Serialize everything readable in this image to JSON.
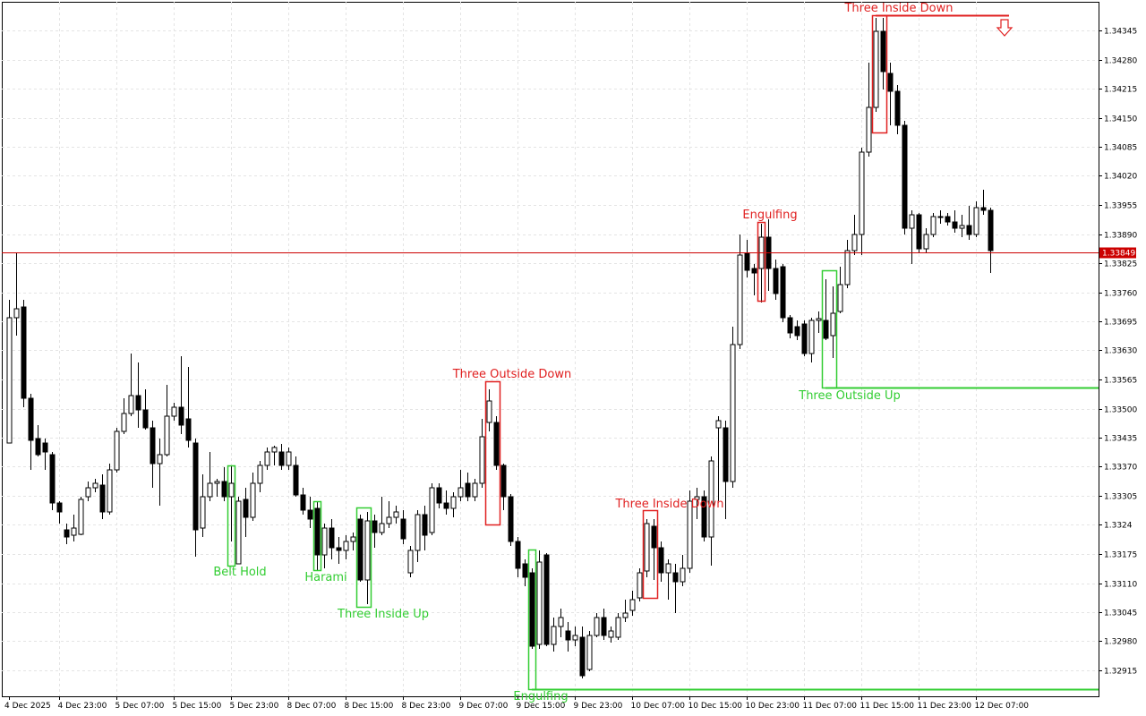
{
  "chart_data": {
    "type": "candlestick",
    "categories": [
      "4 Dec 2025",
      null,
      null,
      null,
      null,
      null,
      null,
      "4 Dec 23:00",
      null,
      null,
      null,
      null,
      null,
      null,
      null,
      "5 Dec 07:00",
      null,
      null,
      null,
      null,
      null,
      null,
      null,
      "5 Dec 15:00",
      null,
      null,
      null,
      null,
      null,
      null,
      null,
      "5 Dec 23:00",
      null,
      null,
      null,
      null,
      null,
      null,
      null,
      "8 Dec 07:00",
      null,
      null,
      null,
      null,
      null,
      null,
      null,
      "8 Dec 15:00",
      null,
      null,
      null,
      null,
      null,
      null,
      null,
      "8 Dec 23:00",
      null,
      null,
      null,
      null,
      null,
      null,
      null,
      "9 Dec 07:00",
      null,
      null,
      null,
      null,
      null,
      null,
      null,
      "9 Dec 15:00",
      null,
      null,
      null,
      null,
      null,
      null,
      null,
      "9 Dec 23:00",
      null,
      null,
      null,
      null,
      null,
      null,
      null,
      "10 Dec 07:00",
      null,
      null,
      null,
      null,
      null,
      null,
      null,
      "10 Dec 15:00",
      null,
      null,
      null,
      null,
      null,
      null,
      null,
      "10 Dec 23:00",
      null,
      null,
      null,
      null,
      null,
      null,
      null,
      "11 Dec 07:00",
      null,
      null,
      null,
      null,
      null,
      null,
      null,
      "11 Dec 15:00",
      null,
      null,
      null,
      null,
      null,
      null,
      null,
      "11 Dec 23:00",
      null,
      null,
      null,
      null,
      null,
      null,
      null,
      "12 Dec 07:00",
      null,
      null
    ],
    "open": [
      1.33423,
      1.33703,
      1.33727,
      1.33523,
      1.33433,
      1.33423,
      1.33397,
      1.33289,
      1.33229,
      1.33217,
      1.33219,
      1.33303,
      1.33323,
      1.33329,
      1.33269,
      1.33363,
      1.33449,
      1.33489,
      1.33529,
      1.33497,
      1.33457,
      1.33377,
      1.33397,
      1.33483,
      1.33503,
      1.33477,
      1.33423,
      1.33233,
      1.33303,
      1.33333,
      1.33337,
      1.33303,
      1.33153,
      1.33297,
      1.33257,
      1.33333,
      1.33373,
      1.33403,
      1.33403,
      1.33373,
      1.33373,
      1.33307,
      1.33273,
      1.33277,
      1.33173,
      1.33233,
      1.33189,
      1.33183,
      1.33203,
      1.33253,
      1.33117,
      1.33249,
      1.33223,
      1.33243,
      1.33257,
      1.33253,
      1.33133,
      1.33183,
      1.33263,
      1.33223,
      1.33323,
      1.33289,
      1.33277,
      1.33303,
      1.33333,
      1.33303,
      1.33333,
      1.33469,
      1.33469,
      1.33373,
      1.33303,
      1.33203,
      1.33153,
      1.33133,
      1.32973,
      1.33173,
      1.32973,
      1.33013,
      1.33003,
      1.32983,
      1.32989,
      1.32917,
      1.32993,
      1.33033,
      1.32989,
      1.32989,
      1.33033,
      1.33049,
      1.33077,
      1.33137,
      1.33237,
      1.33189,
      1.33133,
      1.33133,
      1.33113,
      1.33143,
      1.33297,
      1.33303,
      1.33213,
      1.33457,
      1.33457,
      1.33337,
      1.33643,
      1.33847,
      1.33813,
      1.33813,
      1.33883,
      1.33813,
      1.33817,
      1.33703,
      1.33683,
      1.33689,
      1.33623,
      1.33697,
      1.33697,
      1.33663,
      1.33717,
      1.33777,
      1.33853,
      1.33889,
      1.34073,
      1.34173,
      1.34343,
      1.34249,
      1.34209,
      1.34133,
      1.33903,
      1.33933,
      1.33857,
      1.33889,
      1.33929,
      1.33929,
      1.33917,
      1.33903,
      1.33909,
      1.33889,
      1.33949,
      1.33943
    ],
    "high": [
      1.33743,
      1.33849,
      1.33743,
      1.33533,
      1.33463,
      1.33433,
      1.33403,
      1.33293,
      1.33243,
      1.33263,
      1.33303,
      1.33337,
      1.33343,
      1.33353,
      1.33377,
      1.33457,
      1.33523,
      1.33623,
      1.33603,
      1.33543,
      1.33473,
      1.33433,
      1.33553,
      1.33513,
      1.33617,
      1.33593,
      1.33433,
      1.33353,
      1.33403,
      1.33343,
      1.33369,
      1.33373,
      1.33303,
      1.33323,
      1.33357,
      1.33383,
      1.33413,
      1.33417,
      1.33421,
      1.33413,
      1.33393,
      1.33323,
      1.33303,
      1.33293,
      1.33243,
      1.33253,
      1.33213,
      1.33217,
      1.33223,
      1.33263,
      1.33269,
      1.33263,
      1.33303,
      1.33293,
      1.33283,
      1.33273,
      1.33193,
      1.33273,
      1.33283,
      1.33333,
      1.33333,
      1.33317,
      1.33313,
      1.33363,
      1.33357,
      1.33343,
      1.33477,
      1.33543,
      1.33483,
      1.33377,
      1.33309,
      1.33213,
      1.33163,
      1.33143,
      1.33183,
      1.33177,
      1.33033,
      1.33053,
      1.33023,
      1.33013,
      1.33013,
      1.33003,
      1.33043,
      1.33053,
      1.33013,
      1.33043,
      1.33073,
      1.33093,
      1.33143,
      1.33253,
      1.33253,
      1.33203,
      1.33163,
      1.33153,
      1.33173,
      1.33317,
      1.33323,
      1.33317,
      1.33393,
      1.33483,
      1.33473,
      1.33683,
      1.33889,
      1.33877,
      1.33823,
      1.33913,
      1.33923,
      1.33833,
      1.33823,
      1.33709,
      1.33697,
      1.33697,
      1.33703,
      1.33717,
      1.33789,
      1.33773,
      1.33817,
      1.33877,
      1.33933,
      1.34083,
      1.34273,
      1.34373,
      1.34373,
      1.34273,
      1.34223,
      1.34143,
      1.33943,
      1.33937,
      1.33903,
      1.33937,
      1.33943,
      1.33937,
      1.33943,
      1.33933,
      1.33953,
      1.33963,
      1.33989,
      1.33949
    ],
    "low": [
      1.33423,
      1.33663,
      1.33503,
      1.33363,
      1.33393,
      1.33363,
      1.33273,
      1.33243,
      1.33197,
      1.33203,
      1.33217,
      1.33293,
      1.33313,
      1.33253,
      1.33263,
      1.33357,
      1.33443,
      1.33483,
      1.33457,
      1.33453,
      1.33323,
      1.33283,
      1.33393,
      1.33473,
      1.33443,
      1.33413,
      1.33169,
      1.33213,
      1.33293,
      1.33303,
      1.33293,
      1.33203,
      1.33153,
      1.33213,
      1.33249,
      1.33313,
      1.33363,
      1.33373,
      1.33363,
      1.33363,
      1.33303,
      1.33263,
      1.33233,
      1.33139,
      1.33143,
      1.33163,
      1.33153,
      1.33163,
      1.33183,
      1.33113,
      1.33063,
      1.33189,
      1.33217,
      1.33233,
      1.33243,
      1.33197,
      1.33123,
      1.33157,
      1.33183,
      1.33217,
      1.33277,
      1.33263,
      1.33257,
      1.33293,
      1.33293,
      1.33293,
      1.33323,
      1.33449,
      1.33363,
      1.33273,
      1.33193,
      1.33123,
      1.33103,
      1.32963,
      1.32963,
      1.32969,
      1.32957,
      1.32989,
      1.32957,
      1.32969,
      1.32897,
      1.32913,
      1.32989,
      1.32983,
      1.32977,
      1.32983,
      1.33023,
      1.33037,
      1.33069,
      1.33123,
      1.33117,
      1.33113,
      1.33073,
      1.33043,
      1.33103,
      1.33133,
      1.33253,
      1.33203,
      1.33149,
      1.33293,
      1.33253,
      1.33323,
      1.33633,
      1.33793,
      1.33753,
      1.33737,
      1.33763,
      1.33743,
      1.33693,
      1.33657,
      1.33653,
      1.33617,
      1.33603,
      1.33669,
      1.33653,
      1.33613,
      1.33713,
      1.33769,
      1.33843,
      1.33843,
      1.34063,
      1.34163,
      1.34213,
      1.34133,
      1.34113,
      1.33889,
      1.33823,
      1.33849,
      1.33849,
      1.33883,
      1.33913,
      1.33909,
      1.33893,
      1.33883,
      1.33877,
      1.33883,
      1.33933,
      1.33803
    ],
    "close": [
      1.33703,
      1.33723,
      1.33523,
      1.33429,
      1.33397,
      1.33403,
      1.33289,
      1.33269,
      1.33213,
      1.33233,
      1.33297,
      1.33323,
      1.33333,
      1.33269,
      1.33363,
      1.33449,
      1.33489,
      1.33529,
      1.33497,
      1.33457,
      1.33377,
      1.33397,
      1.33483,
      1.33503,
      1.33463,
      1.33429,
      1.33229,
      1.33303,
      1.33333,
      1.33337,
      1.33303,
      1.33333,
      1.33293,
      1.33257,
      1.33333,
      1.33373,
      1.33403,
      1.33413,
      1.33373,
      1.33403,
      1.33307,
      1.33273,
      1.33253,
      1.33173,
      1.33233,
      1.33189,
      1.33183,
      1.33203,
      1.33213,
      1.33117,
      1.33249,
      1.33223,
      1.33243,
      1.33257,
      1.33269,
      1.33209,
      1.33183,
      1.33263,
      1.33217,
      1.33323,
      1.33289,
      1.33277,
      1.33303,
      1.33323,
      1.33303,
      1.33333,
      1.33437,
      1.33517,
      1.33373,
      1.33303,
      1.33203,
      1.33143,
      1.33123,
      1.32969,
      1.33157,
      1.32973,
      1.33013,
      1.33033,
      1.32983,
      1.32993,
      1.32903,
      1.32993,
      1.33033,
      1.32993,
      1.33003,
      1.33033,
      1.33043,
      1.33073,
      1.33133,
      1.33243,
      1.33189,
      1.33133,
      1.33153,
      1.33113,
      1.33143,
      1.33293,
      1.33303,
      1.33213,
      1.33383,
      1.33473,
      1.33337,
      1.33643,
      1.33843,
      1.33809,
      1.33803,
      1.33883,
      1.33813,
      1.33757,
      1.33703,
      1.33669,
      1.33663,
      1.33623,
      1.33697,
      1.33701,
      1.33657,
      1.33713,
      1.33777,
      1.33853,
      1.33889,
      1.34073,
      1.34173,
      1.34343,
      1.34253,
      1.34209,
      1.34133,
      1.33903,
      1.33933,
      1.33857,
      1.33889,
      1.33929,
      1.33929,
      1.33917,
      1.33903,
      1.33909,
      1.33889,
      1.33949,
      1.33943,
      1.33853
    ],
    "ylim": [
      1.32857,
      1.34409
    ],
    "yticks": [
      1.32915,
      {
        "value": 1.3298,
        "label": "1.32980"
      },
      1.33045,
      {
        "value": 1.3311,
        "label": "1.33110"
      },
      1.33175,
      1.3324,
      1.33305,
      {
        "value": 1.3337,
        "label": "1.33370"
      },
      1.33435,
      {
        "value": 1.335,
        "label": "1.33500"
      },
      1.33565,
      {
        "value": 1.3363,
        "label": "1.33630"
      },
      1.33695,
      {
        "value": 1.3376,
        "label": "1.33760"
      },
      1.33825,
      {
        "value": 1.3389,
        "label": "1.33890"
      },
      1.33955,
      {
        "value": 1.3402,
        "label": "1.34020"
      },
      1.34085,
      {
        "value": 1.3415,
        "label": "1.34150"
      },
      1.34215,
      {
        "value": 1.3428,
        "label": "1.34280"
      },
      1.34345
    ],
    "current_price": 1.33849,
    "current_price_color": "#cc0000",
    "up_color": "#ffffff",
    "down_color": "#000000",
    "grid": true,
    "patterns": [
      {
        "label": "Belt Hold",
        "color": "#32cd32"
      },
      {
        "label": "Harami",
        "color": "#32cd32"
      },
      {
        "label": "Three Inside Up",
        "color": "#32cd32"
      },
      {
        "label": "Three Outside Down",
        "color": "#e02020"
      },
      {
        "label": "Engulfing",
        "color": "#32cd32"
      },
      {
        "label": "Three Inside Down",
        "color": "#e02020"
      },
      {
        "label": "Engulfing",
        "color": "#e02020"
      },
      {
        "label": "Three Outside Up",
        "color": "#32cd32"
      },
      {
        "label": "Three Inside Down",
        "color": "#e02020"
      }
    ]
  }
}
